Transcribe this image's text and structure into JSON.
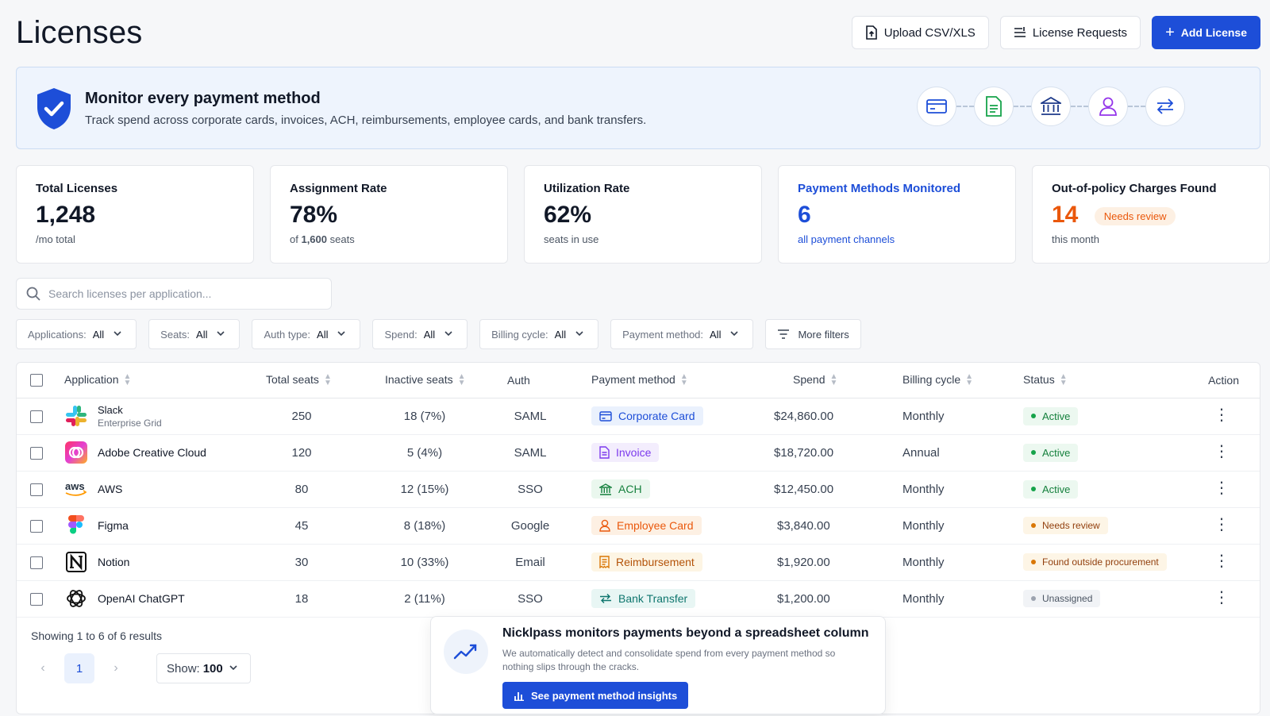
{
  "page": {
    "title": "Licenses"
  },
  "header": {
    "upload_label": "Upload CSV/XLS",
    "requests_label": "License Requests",
    "add_label": "Add License"
  },
  "banner": {
    "title": "Monitor every payment method",
    "subtitle": "Track spend across corporate cards, invoices, ACH, reimbursements, employee cards, and bank transfers.",
    "icons": [
      "credit-card-icon",
      "invoice-icon",
      "bank-icon",
      "person-icon",
      "transfer-icon"
    ]
  },
  "stats": [
    {
      "label": "Total Licenses",
      "value": "1,248",
      "sub": "/mo total"
    },
    {
      "label": "Assignment Rate",
      "value": "78%",
      "sub_prefix": "of",
      "sub_bold": "1,600",
      "sub_suffix": "seats"
    },
    {
      "label": "Utilization Rate",
      "value": "62%",
      "sub": "seats in use"
    },
    {
      "label": "Payment Methods Monitored",
      "value": "6",
      "sub": "all payment channels"
    },
    {
      "label": "Out-of-policy Charges Found",
      "value": "14",
      "badge": "Needs review",
      "sub": "this month"
    }
  ],
  "search": {
    "placeholder": "Search licenses per application..."
  },
  "filters": [
    {
      "label": "Applications:",
      "value": "All"
    },
    {
      "label": "Seats:",
      "value": "All"
    },
    {
      "label": "Auth type:",
      "value": "All"
    },
    {
      "label": "Spend:",
      "value": "All"
    },
    {
      "label": "Billing cycle:",
      "value": "All"
    },
    {
      "label": "Payment method:",
      "value": "All"
    }
  ],
  "more_filters": "More filters",
  "table": {
    "headers": [
      "Application",
      "Total seats",
      "Inactive seats",
      "Auth",
      "Payment method",
      "Spend",
      "Billing cycle",
      "Status",
      "Action"
    ],
    "rows": [
      {
        "app": "Slack",
        "app_sub": "Enterprise Grid",
        "logo": "slack-logo",
        "total": "250",
        "inactive": "18 (7%)",
        "auth": "SAML",
        "payment": "Corporate Card",
        "spend": "$24,860.00",
        "cycle": "Monthly",
        "status": "Active"
      },
      {
        "app": "Adobe Creative Cloud",
        "app_sub": "",
        "logo": "adobe-logo",
        "total": "120",
        "inactive": "5 (4%)",
        "auth": "SAML",
        "payment": "Invoice",
        "spend": "$18,720.00",
        "cycle": "Annual",
        "status": "Active"
      },
      {
        "app": "AWS",
        "app_sub": "",
        "logo": "aws-logo",
        "total": "80",
        "inactive": "12 (15%)",
        "auth": "SSO",
        "payment": "ACH",
        "spend": "$12,450.00",
        "cycle": "Monthly",
        "status": "Active"
      },
      {
        "app": "Figma",
        "app_sub": "",
        "logo": "figma-logo",
        "total": "45",
        "inactive": "8 (18%)",
        "auth": "Google",
        "payment": "Employee Card",
        "spend": "$3,840.00",
        "cycle": "Monthly",
        "status": "Needs review"
      },
      {
        "app": "Notion",
        "app_sub": "",
        "logo": "notion-logo",
        "total": "30",
        "inactive": "10 (33%)",
        "auth": "Email",
        "payment": "Reimbursement",
        "spend": "$1,920.00",
        "cycle": "Monthly",
        "status": "Found outside procurement"
      },
      {
        "app": "OpenAI ChatGPT",
        "app_sub": "",
        "logo": "openai-logo",
        "total": "18",
        "inactive": "2 (11%)",
        "auth": "SSO",
        "payment": "Bank Transfer",
        "spend": "$1,200.00",
        "cycle": "Monthly",
        "status": "Unassigned"
      }
    ]
  },
  "pagination": {
    "summary": "Showing 1 to 6 of 6 results",
    "current_page": "1",
    "show_label": "Show:",
    "show_value": "100"
  },
  "popup": {
    "title": "Nicklpass monitors payments beyond a spreadsheet column",
    "subtitle": "We automatically detect and consolidate spend from every payment method so nothing slips through the cracks.",
    "button": "See payment method insights"
  },
  "colors": {
    "accent": "#1d4ed8",
    "warning": "#ea580c",
    "active_green": "#16a34a",
    "invoice_purple": "#7c3aed",
    "ach_green": "#15803d",
    "employee_orange": "#ea580c",
    "reimbursement_amber": "#d97706",
    "transfer_teal": "#0f766e"
  }
}
